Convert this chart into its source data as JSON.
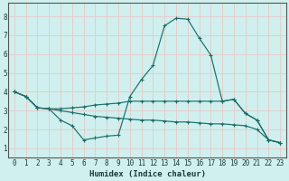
{
  "xlabel": "Humidex (Indice chaleur)",
  "xlim": [
    -0.5,
    23.5
  ],
  "ylim": [
    0.5,
    8.7
  ],
  "xticks": [
    0,
    1,
    2,
    3,
    4,
    5,
    6,
    7,
    8,
    9,
    10,
    11,
    12,
    13,
    14,
    15,
    16,
    17,
    18,
    19,
    20,
    21,
    22,
    23
  ],
  "yticks": [
    1,
    2,
    3,
    4,
    5,
    6,
    7,
    8
  ],
  "bg_color": "#cff0ee",
  "line_color": "#1a6e6a",
  "grid_color": "#e8c8c8",
  "lines": [
    {
      "x": [
        0,
        1,
        2,
        3,
        4,
        5,
        6,
        7,
        8,
        9,
        10,
        11,
        12,
        13,
        14,
        15,
        16,
        17,
        18,
        19,
        20,
        21,
        22,
        23
      ],
      "y": [
        4.0,
        3.75,
        3.15,
        3.1,
        2.5,
        2.2,
        1.45,
        1.55,
        1.65,
        1.7,
        3.75,
        4.65,
        5.4,
        7.5,
        7.9,
        7.85,
        6.85,
        5.95,
        3.5,
        3.6,
        2.85,
        2.5,
        1.45,
        1.3
      ]
    },
    {
      "x": [
        0,
        1,
        2,
        3,
        4,
        5,
        6,
        7,
        8,
        9,
        10,
        11,
        12,
        13,
        14,
        15,
        16,
        17,
        18,
        19,
        20,
        21,
        22,
        23
      ],
      "y": [
        4.0,
        3.75,
        3.15,
        3.1,
        3.1,
        3.15,
        3.2,
        3.3,
        3.35,
        3.4,
        3.5,
        3.5,
        3.5,
        3.5,
        3.5,
        3.5,
        3.5,
        3.5,
        3.5,
        3.6,
        2.85,
        2.5,
        1.45,
        1.3
      ]
    },
    {
      "x": [
        0,
        1,
        2,
        3,
        4,
        5,
        6,
        7,
        8,
        9,
        10,
        11,
        12,
        13,
        14,
        15,
        16,
        17,
        18,
        19,
        20,
        21,
        22,
        23
      ],
      "y": [
        4.0,
        3.75,
        3.15,
        3.1,
        3.0,
        2.9,
        2.8,
        2.7,
        2.65,
        2.6,
        2.55,
        2.5,
        2.5,
        2.45,
        2.4,
        2.4,
        2.35,
        2.3,
        2.3,
        2.25,
        2.2,
        2.0,
        1.45,
        1.3
      ]
    }
  ]
}
